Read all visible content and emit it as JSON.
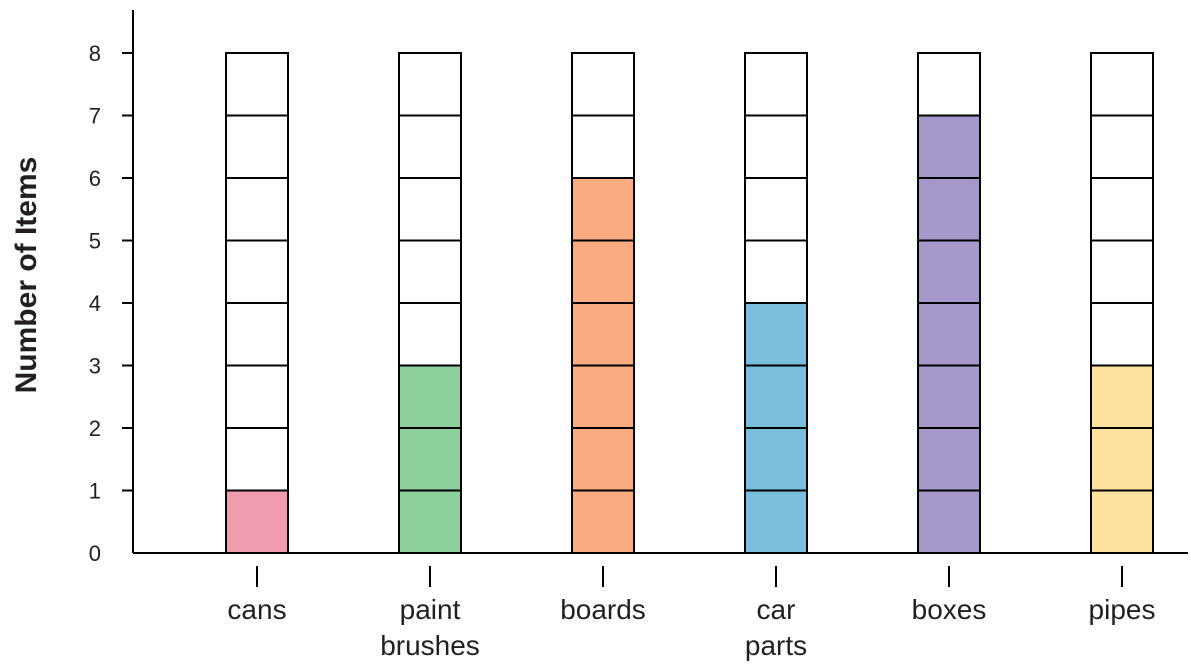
{
  "chart_data": {
    "type": "bar",
    "title": "",
    "xlabel": "",
    "ylabel": "Number of Items",
    "ylim": [
      0,
      8
    ],
    "yticks": [
      0,
      1,
      2,
      3,
      4,
      5,
      6,
      7,
      8
    ],
    "categories": [
      [
        "cans"
      ],
      [
        "paint",
        "brushes"
      ],
      [
        "boards"
      ],
      [
        "car",
        "parts"
      ],
      [
        "boxes"
      ],
      [
        "pipes"
      ]
    ],
    "values": [
      1,
      3,
      6,
      4,
      7,
      3
    ],
    "colors": [
      "#f19bb0",
      "#8ccf9b",
      "#f8ab80",
      "#79bfdc",
      "#a597c9",
      "#fde29d"
    ],
    "empty_color": "#ffffff",
    "grid": false,
    "legend": "none"
  }
}
